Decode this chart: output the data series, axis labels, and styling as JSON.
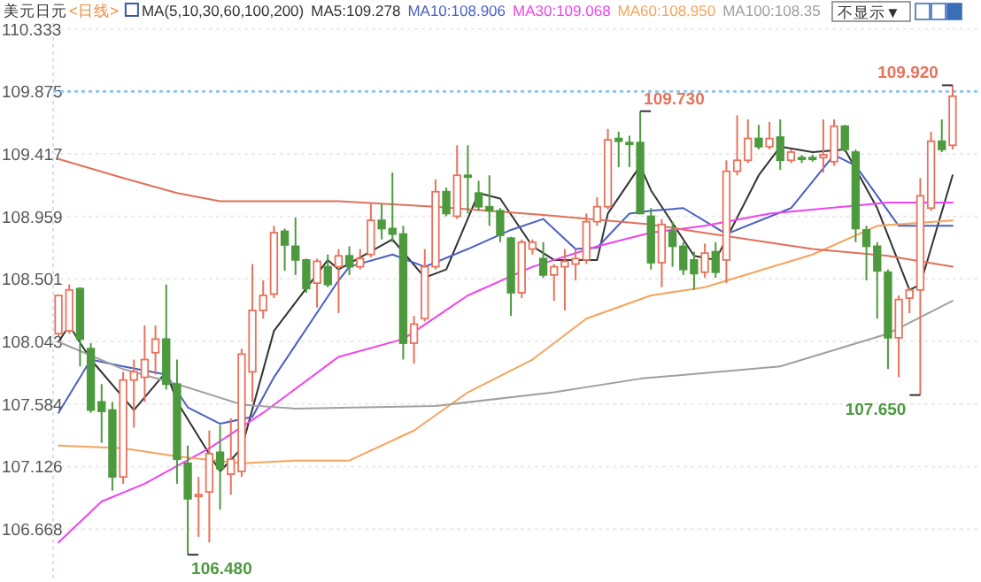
{
  "chart_data": {
    "type": "candlestick",
    "title": "美元日元",
    "subtitle": "<日线>",
    "annotations": [
      "MA(5,10,30,60,100,200)",
      "不显示▼",
      "109.730",
      "106.480",
      "107.650",
      "109.920"
    ],
    "categories": [
      null,
      null,
      null,
      null,
      null,
      null,
      null,
      null,
      null,
      null,
      null,
      null,
      null,
      null,
      null,
      null,
      null,
      null,
      null,
      null,
      null,
      null,
      null,
      null,
      null,
      null,
      null,
      null,
      null,
      null,
      null,
      null,
      null,
      null,
      null,
      null,
      null,
      null,
      null,
      null,
      null,
      null,
      null,
      null,
      null,
      null,
      null,
      null,
      null,
      null,
      null,
      null,
      null,
      null,
      null,
      null,
      null,
      null,
      null,
      null,
      null,
      null,
      null,
      null,
      null,
      null,
      null,
      null,
      null,
      null,
      null,
      null,
      null,
      null,
      null,
      null,
      null,
      null,
      null,
      null,
      null,
      null,
      null,
      null
    ],
    "ohlc": [
      [
        108.1,
        108.38,
        108.08,
        108.38
      ],
      [
        108.12,
        108.46,
        108.1,
        108.42
      ],
      [
        108.43,
        108.44,
        107.86,
        108.06
      ],
      [
        107.99,
        108.03,
        107.52,
        107.54
      ],
      [
        107.6,
        107.73,
        107.3,
        107.53
      ],
      [
        107.54,
        107.6,
        106.95,
        107.05
      ],
      [
        107.05,
        107.82,
        107.0,
        107.76
      ],
      [
        107.76,
        107.91,
        107.41,
        107.82
      ],
      [
        107.78,
        108.16,
        107.6,
        107.91
      ],
      [
        107.96,
        108.16,
        107.8,
        108.06
      ],
      [
        108.06,
        108.46,
        107.69,
        107.73
      ],
      [
        107.73,
        107.91,
        107.0,
        107.18
      ],
      [
        107.15,
        107.28,
        106.48,
        106.89
      ],
      [
        106.91,
        107.05,
        106.61,
        106.92
      ],
      [
        106.94,
        107.39,
        106.57,
        107.22
      ],
      [
        107.23,
        107.43,
        106.81,
        107.11
      ],
      [
        107.07,
        107.48,
        106.92,
        107.18
      ],
      [
        107.09,
        107.99,
        107.05,
        107.95
      ],
      [
        107.82,
        108.61,
        107.6,
        108.27
      ],
      [
        108.27,
        108.49,
        108.21,
        108.38
      ],
      [
        108.39,
        108.89,
        108.36,
        108.84
      ],
      [
        108.85,
        108.87,
        108.56,
        108.75
      ],
      [
        108.74,
        108.95,
        108.53,
        108.64
      ],
      [
        108.64,
        108.65,
        108.4,
        108.43
      ],
      [
        108.47,
        108.65,
        108.29,
        108.63
      ],
      [
        108.59,
        108.68,
        108.44,
        108.46
      ],
      [
        108.59,
        108.72,
        108.25,
        108.67
      ],
      [
        108.67,
        108.74,
        108.53,
        108.59
      ],
      [
        108.59,
        108.72,
        108.57,
        108.65
      ],
      [
        108.68,
        109.05,
        108.66,
        108.93
      ],
      [
        108.93,
        109.05,
        108.79,
        108.87
      ],
      [
        108.87,
        109.28,
        108.77,
        108.83
      ],
      [
        108.83,
        108.89,
        107.91,
        108.03
      ],
      [
        108.03,
        108.23,
        107.88,
        108.17
      ],
      [
        108.21,
        108.72,
        108.19,
        108.59
      ],
      [
        108.59,
        109.23,
        108.57,
        109.14
      ],
      [
        109.14,
        109.17,
        108.96,
        108.98
      ],
      [
        108.96,
        109.48,
        108.94,
        109.26
      ],
      [
        109.26,
        109.48,
        108.98,
        109.25
      ],
      [
        109.13,
        109.22,
        109.0,
        109.03
      ],
      [
        109.03,
        109.26,
        108.89,
        109.0
      ],
      [
        109.0,
        109.02,
        108.77,
        108.82
      ],
      [
        108.8,
        108.81,
        108.23,
        108.4
      ],
      [
        108.4,
        108.79,
        108.36,
        108.77
      ],
      [
        108.72,
        108.79,
        108.68,
        108.77
      ],
      [
        108.65,
        108.77,
        108.51,
        108.53
      ],
      [
        108.53,
        108.61,
        108.34,
        108.59
      ],
      [
        108.59,
        108.72,
        108.27,
        108.63
      ],
      [
        108.61,
        108.72,
        108.49,
        108.65
      ],
      [
        108.64,
        108.98,
        108.61,
        108.92
      ],
      [
        108.92,
        109.1,
        108.89,
        109.03
      ],
      [
        109.03,
        109.6,
        109.01,
        109.52
      ],
      [
        109.53,
        109.58,
        109.32,
        109.51
      ],
      [
        109.5,
        109.55,
        109.32,
        109.49
      ],
      [
        109.5,
        109.73,
        108.98,
        108.98
      ],
      [
        108.96,
        109.02,
        108.57,
        108.62
      ],
      [
        108.62,
        108.94,
        108.44,
        108.9
      ],
      [
        108.85,
        108.92,
        108.59,
        108.74
      ],
      [
        108.74,
        108.77,
        108.53,
        108.57
      ],
      [
        108.64,
        108.7,
        108.42,
        108.54
      ],
      [
        108.55,
        108.76,
        108.51,
        108.69
      ],
      [
        108.7,
        108.77,
        108.51,
        108.55
      ],
      [
        108.64,
        109.37,
        108.47,
        109.29
      ],
      [
        109.29,
        109.7,
        109.26,
        109.37
      ],
      [
        109.37,
        109.67,
        109.35,
        109.53
      ],
      [
        109.53,
        109.63,
        109.45,
        109.47
      ],
      [
        109.47,
        109.65,
        109.45,
        109.53
      ],
      [
        109.54,
        109.67,
        109.3,
        109.37
      ],
      [
        109.37,
        109.45,
        109.35,
        109.43
      ],
      [
        109.39,
        109.41,
        109.35,
        109.38
      ],
      [
        109.39,
        109.41,
        109.36,
        109.38
      ],
      [
        109.39,
        109.67,
        109.28,
        109.41
      ],
      [
        109.36,
        109.67,
        109.33,
        109.62
      ],
      [
        109.62,
        109.63,
        109.43,
        109.45
      ],
      [
        109.43,
        109.45,
        108.77,
        108.87
      ],
      [
        108.86,
        108.89,
        108.49,
        108.74
      ],
      [
        108.74,
        108.77,
        108.21,
        108.56
      ],
      [
        108.55,
        108.57,
        107.84,
        108.07
      ],
      [
        108.07,
        108.38,
        107.78,
        108.35
      ],
      [
        108.36,
        108.44,
        108.25,
        108.42
      ],
      [
        108.42,
        109.24,
        107.65,
        109.11
      ],
      [
        109.02,
        109.58,
        109.0,
        109.51
      ],
      [
        109.51,
        109.67,
        109.43,
        109.45
      ],
      [
        109.48,
        109.92,
        109.45,
        109.84
      ]
    ],
    "colors": [
      "#e8725c",
      "#e8725c",
      "#4d9a3e",
      "#4d9a3e",
      "#4d9a3e",
      "#4d9a3e",
      "#e8725c",
      "#e8725c",
      "#e8725c",
      "#e8725c",
      "#4d9a3e",
      "#4d9a3e",
      "#4d9a3e",
      "#e8725c",
      "#e8725c",
      "#4d9a3e",
      "#e8725c",
      "#e8725c",
      "#e8725c",
      "#e8725c",
      "#e8725c",
      "#4d9a3e",
      "#4d9a3e",
      "#4d9a3e",
      "#e8725c",
      "#4d9a3e",
      "#e8725c",
      "#4d9a3e",
      "#e8725c",
      "#e8725c",
      "#4d9a3e",
      "#4d9a3e",
      "#4d9a3e",
      "#e8725c",
      "#e8725c",
      "#e8725c",
      "#4d9a3e",
      "#e8725c",
      "#4d9a3e",
      "#4d9a3e",
      "#4d9a3e",
      "#4d9a3e",
      "#4d9a3e",
      "#e8725c",
      "#e8725c",
      "#4d9a3e",
      "#e8725c",
      "#e8725c",
      "#e8725c",
      "#e8725c",
      "#e8725c",
      "#e8725c",
      "#4d9a3e",
      "#4d9a3e",
      "#4d9a3e",
      "#4d9a3e",
      "#e8725c",
      "#4d9a3e",
      "#4d9a3e",
      "#4d9a3e",
      "#e8725c",
      "#4d9a3e",
      "#e8725c",
      "#e8725c",
      "#e8725c",
      "#4d9a3e",
      "#e8725c",
      "#4d9a3e",
      "#e8725c",
      "#4d9a3e",
      "#4d9a3e",
      "#e8725c",
      "#e8725c",
      "#4d9a3e",
      "#4d9a3e",
      "#4d9a3e",
      "#4d9a3e",
      "#4d9a3e",
      "#e8725c",
      "#e8725c",
      "#e8725c",
      "#e8725c",
      "#4d9a3e",
      "#e8725c"
    ],
    "series": [
      {
        "name": "MA5:109.278",
        "type": "line",
        "color": "#333333",
        "values": [
          108.04,
          108.16,
          null,
          107.91,
          null,
          null,
          null,
          107.54,
          null,
          null,
          107.82,
          107.6,
          null,
          null,
          null,
          107.09,
          null,
          107.26,
          null,
          null,
          108.12,
          null,
          null,
          null,
          null,
          108.64,
          108.57,
          null,
          null,
          null,
          null,
          108.79,
          null,
          null,
          108.51,
          null,
          108.57,
          null,
          null,
          109.13,
          null,
          109.09,
          null,
          null,
          108.74,
          null,
          108.64,
          null,
          null,
          null,
          108.64,
          108.98,
          null,
          null,
          109.33,
          109.15,
          null,
          null,
          null,
          108.67,
          null,
          108.64,
          null,
          null,
          null,
          109.26,
          null,
          109.47,
          null,
          null,
          109.43,
          null,
          null,
          109.45,
          null,
          null,
          109.02,
          null,
          null,
          108.42,
          108.46,
          null,
          null,
          109.26
        ]
      },
      {
        "name": "MA10:108.906",
        "type": "line",
        "color": "#4a5fc1",
        "values": [
          107.52,
          null,
          null,
          107.91,
          null,
          null,
          107.86,
          null,
          null,
          null,
          107.8,
          null,
          107.56,
          null,
          null,
          107.44,
          null,
          null,
          107.49,
          null,
          107.78,
          null,
          null,
          null,
          null,
          null,
          108.49,
          108.59,
          null,
          null,
          null,
          108.68,
          null,
          null,
          108.59,
          null,
          null,
          null,
          108.72,
          null,
          null,
          null,
          108.86,
          null,
          null,
          108.94,
          null,
          null,
          108.72,
          null,
          108.73,
          null,
          null,
          108.98,
          null,
          109.0,
          null,
          null,
          109.02,
          null,
          null,
          null,
          108.83,
          null,
          null,
          null,
          null,
          null,
          109.02,
          null,
          null,
          null,
          109.41,
          null,
          109.33,
          null,
          null,
          null,
          108.89,
          null,
          null,
          null,
          null,
          108.89
        ]
      },
      {
        "name": "MA30:109.068",
        "type": "line",
        "color": "#ee44ee",
        "values": [
          106.57,
          null,
          null,
          null,
          106.87,
          null,
          null,
          null,
          107.0,
          null,
          null,
          null,
          null,
          null,
          107.26,
          null,
          null,
          null,
          null,
          107.52,
          null,
          null,
          null,
          null,
          null,
          null,
          107.93,
          null,
          null,
          null,
          null,
          null,
          108.06,
          null,
          null,
          null,
          null,
          null,
          108.38,
          null,
          null,
          null,
          null,
          null,
          108.59,
          null,
          null,
          null,
          null,
          null,
          108.74,
          null,
          null,
          null,
          null,
          108.84,
          null,
          null,
          null,
          null,
          108.89,
          null,
          null,
          null,
          null,
          null,
          108.98,
          null,
          null,
          null,
          null,
          null,
          null,
          null,
          null,
          null,
          null,
          109.06,
          null,
          null,
          null,
          null,
          null,
          109.06
        ]
      },
      {
        "name": "MA60:108.950",
        "type": "line",
        "color": "#f7a35c",
        "values": [
          107.28,
          null,
          null,
          null,
          null,
          null,
          107.26,
          null,
          null,
          null,
          null,
          107.2,
          null,
          null,
          null,
          null,
          null,
          107.15,
          null,
          null,
          null,
          null,
          107.17,
          null,
          null,
          null,
          null,
          107.17,
          null,
          null,
          null,
          null,
          null,
          107.39,
          null,
          null,
          null,
          null,
          107.67,
          null,
          null,
          null,
          null,
          null,
          107.91,
          null,
          null,
          null,
          null,
          108.21,
          null,
          null,
          null,
          null,
          null,
          108.38,
          null,
          null,
          null,
          null,
          108.44,
          null,
          null,
          null,
          null,
          null,
          null,
          null,
          null,
          null,
          108.68,
          null,
          null,
          null,
          null,
          null,
          108.89,
          null,
          null,
          null,
          null,
          null,
          null,
          108.93
        ]
      },
      {
        "name": "MA100:108.35",
        "type": "line",
        "color": "#a0a0a0",
        "values": [
          108.04,
          null,
          null,
          null,
          null,
          null,
          107.84,
          null,
          null,
          null,
          null,
          107.73,
          null,
          null,
          null,
          null,
          null,
          107.58,
          null,
          null,
          null,
          null,
          107.55,
          null,
          null,
          null,
          null,
          null,
          null,
          null,
          null,
          null,
          null,
          null,
          null,
          107.57,
          null,
          null,
          null,
          null,
          null,
          null,
          null,
          null,
          null,
          null,
          107.67,
          null,
          null,
          null,
          null,
          null,
          null,
          null,
          107.77,
          null,
          null,
          null,
          null,
          null,
          null,
          null,
          null,
          null,
          null,
          null,
          null,
          107.86,
          null,
          null,
          null,
          null,
          null,
          null,
          null,
          null,
          null,
          108.1,
          null,
          null,
          null,
          null,
          null,
          108.34
        ]
      },
      {
        "type": "line",
        "color": "#e0705a",
        "values": [
          109.38,
          null,
          null,
          null,
          null,
          null,
          109.24,
          null,
          null,
          null,
          null,
          109.13,
          null,
          null,
          null,
          109.07,
          null,
          null,
          null,
          null,
          null,
          null,
          null,
          null,
          null,
          null,
          109.07,
          null,
          null,
          null,
          null,
          null,
          null,
          null,
          null,
          109.03,
          null,
          null,
          null,
          null,
          null,
          null,
          null,
          null,
          null,
          108.97,
          null,
          null,
          null,
          null,
          null,
          null,
          null,
          null,
          null,
          108.9,
          null,
          null,
          null,
          108.85,
          null,
          null,
          null,
          null,
          null,
          null,
          null,
          null,
          null,
          null,
          108.72,
          null,
          null,
          null,
          null,
          null,
          null,
          108.67,
          null,
          null,
          null,
          null,
          null,
          108.59
        ]
      }
    ],
    "ylim": [
      106.28,
      110.48
    ],
    "yticks": [
      106.668,
      107.126,
      107.584,
      108.043,
      108.501,
      108.959,
      109.417,
      109.875,
      110.333
    ],
    "ref_lines": [
      {
        "axis": "y",
        "value": 109.875,
        "color": "#8cc4f2",
        "line_style": "dotted"
      }
    ],
    "grid": "y",
    "legend": "top",
    "line_style": "solid",
    "marker": "none"
  }
}
